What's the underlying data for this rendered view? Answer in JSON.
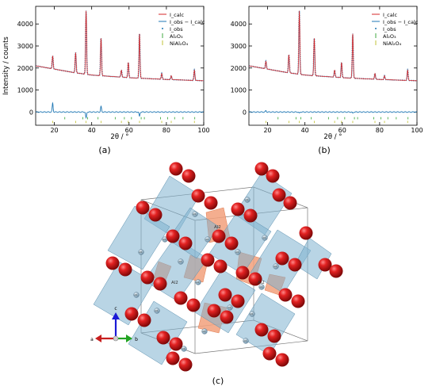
{
  "chart_data": [
    {
      "panel": "(a)",
      "type": "line",
      "xlabel": "2θ / °",
      "ylabel": "Intensity / counts",
      "xlim": [
        10,
        100
      ],
      "ylim": [
        -600,
        4800
      ],
      "xticks": [
        20,
        40,
        60,
        80,
        100
      ],
      "yticks": [
        0,
        1000,
        2000,
        3000,
        4000
      ],
      "grid": false,
      "legend": "top-right",
      "legend_entries": [
        "I_calc",
        "I_obs − I_calc",
        "I_obs",
        "Al₂O₃",
        "NiAl₂O₄"
      ],
      "background": [
        [
          10,
          2100
        ],
        [
          20,
          1950
        ],
        [
          30,
          1800
        ],
        [
          40,
          1680
        ],
        [
          60,
          1560
        ],
        [
          80,
          1480
        ],
        [
          100,
          1420
        ]
      ],
      "peaks": [
        {
          "x": 19.1,
          "y": 2550
        },
        {
          "x": 31.4,
          "y": 2700
        },
        {
          "x": 37.0,
          "y": 4600
        },
        {
          "x": 45.0,
          "y": 3350
        },
        {
          "x": 55.9,
          "y": 1900
        },
        {
          "x": 59.6,
          "y": 2250
        },
        {
          "x": 65.6,
          "y": 3550
        },
        {
          "x": 77.5,
          "y": 1750
        },
        {
          "x": 82.6,
          "y": 1650
        },
        {
          "x": 95.0,
          "y": 1900
        }
      ],
      "difference_spikes": [
        {
          "x": 19.1,
          "y": 400
        },
        {
          "x": 37.0,
          "y": -280
        },
        {
          "x": 45.0,
          "y": 250
        },
        {
          "x": 65.6,
          "y": -200
        }
      ],
      "ticks_Al2O3": [
        25.6,
        35.2,
        37.8,
        43.4,
        52.6,
        57.5,
        61.3,
        66.5,
        68.2,
        76.9,
        80.7,
        84.4,
        88.9,
        95.2
      ],
      "ticks_NiAl2O4": [
        19.1,
        31.4,
        37.0,
        45.0,
        55.9,
        59.6,
        65.6,
        77.5,
        82.6,
        95.0
      ],
      "series_colors": {
        "I_calc": "#d62728",
        "diff": "#1f77b4",
        "I_obs": "#1f77b4",
        "Al2O3": "#2ca02c",
        "NiAl2O4": "#bcbd22"
      }
    },
    {
      "panel": "(b)",
      "type": "line",
      "xlabel": "2θ / °",
      "ylabel": "",
      "xlim": [
        10,
        100
      ],
      "ylim": [
        -600,
        4800
      ],
      "xticks": [
        20,
        40,
        60,
        80,
        100
      ],
      "yticks": [
        0,
        1000,
        2000,
        3000,
        4000
      ],
      "grid": false,
      "legend": "top-right",
      "legend_entries": [
        "I_calc",
        "I_obs − I_calc",
        "I_obs",
        "Al₂O₃",
        "NiAl₂O₄"
      ],
      "background": [
        [
          10,
          2100
        ],
        [
          20,
          1950
        ],
        [
          30,
          1800
        ],
        [
          40,
          1680
        ],
        [
          60,
          1560
        ],
        [
          80,
          1480
        ],
        [
          100,
          1420
        ]
      ],
      "peaks": [
        {
          "x": 19.1,
          "y": 2300
        },
        {
          "x": 31.4,
          "y": 2600
        },
        {
          "x": 37.0,
          "y": 4600
        },
        {
          "x": 45.0,
          "y": 3350
        },
        {
          "x": 55.9,
          "y": 1900
        },
        {
          "x": 59.6,
          "y": 2250
        },
        {
          "x": 65.6,
          "y": 3550
        },
        {
          "x": 77.5,
          "y": 1750
        },
        {
          "x": 82.6,
          "y": 1650
        },
        {
          "x": 95.0,
          "y": 1900
        }
      ],
      "difference_spikes": [
        {
          "x": 19.1,
          "y": 60
        },
        {
          "x": 37.0,
          "y": -60
        },
        {
          "x": 65.6,
          "y": -60
        }
      ],
      "ticks_Al2O3": [
        25.6,
        35.2,
        37.8,
        43.4,
        52.6,
        57.5,
        61.3,
        66.5,
        68.2,
        76.9,
        80.7,
        84.4,
        88.9,
        95.2
      ],
      "ticks_NiAl2O4": [
        19.1,
        31.4,
        37.0,
        45.0,
        55.9,
        59.6,
        65.6,
        77.5,
        82.6,
        95.0
      ],
      "series_colors": {
        "I_calc": "#d62728",
        "diff": "#1f77b4",
        "I_obs": "#1f77b4",
        "Al2O3": "#2ca02c",
        "NiAl2O4": "#bcbd22"
      }
    }
  ],
  "labels": {
    "panel_a": "(a)",
    "panel_b": "(b)",
    "panel_c": "(c)",
    "site_label": "Al2",
    "atom_label": "Al1",
    "axis_a": "a",
    "axis_b": "b",
    "axis_c": "c"
  },
  "structure": {
    "oxygen_color": "#d81a1a",
    "octahedra_color": "#7fb2cf",
    "tetrahedra_color": "#f2a07b"
  }
}
